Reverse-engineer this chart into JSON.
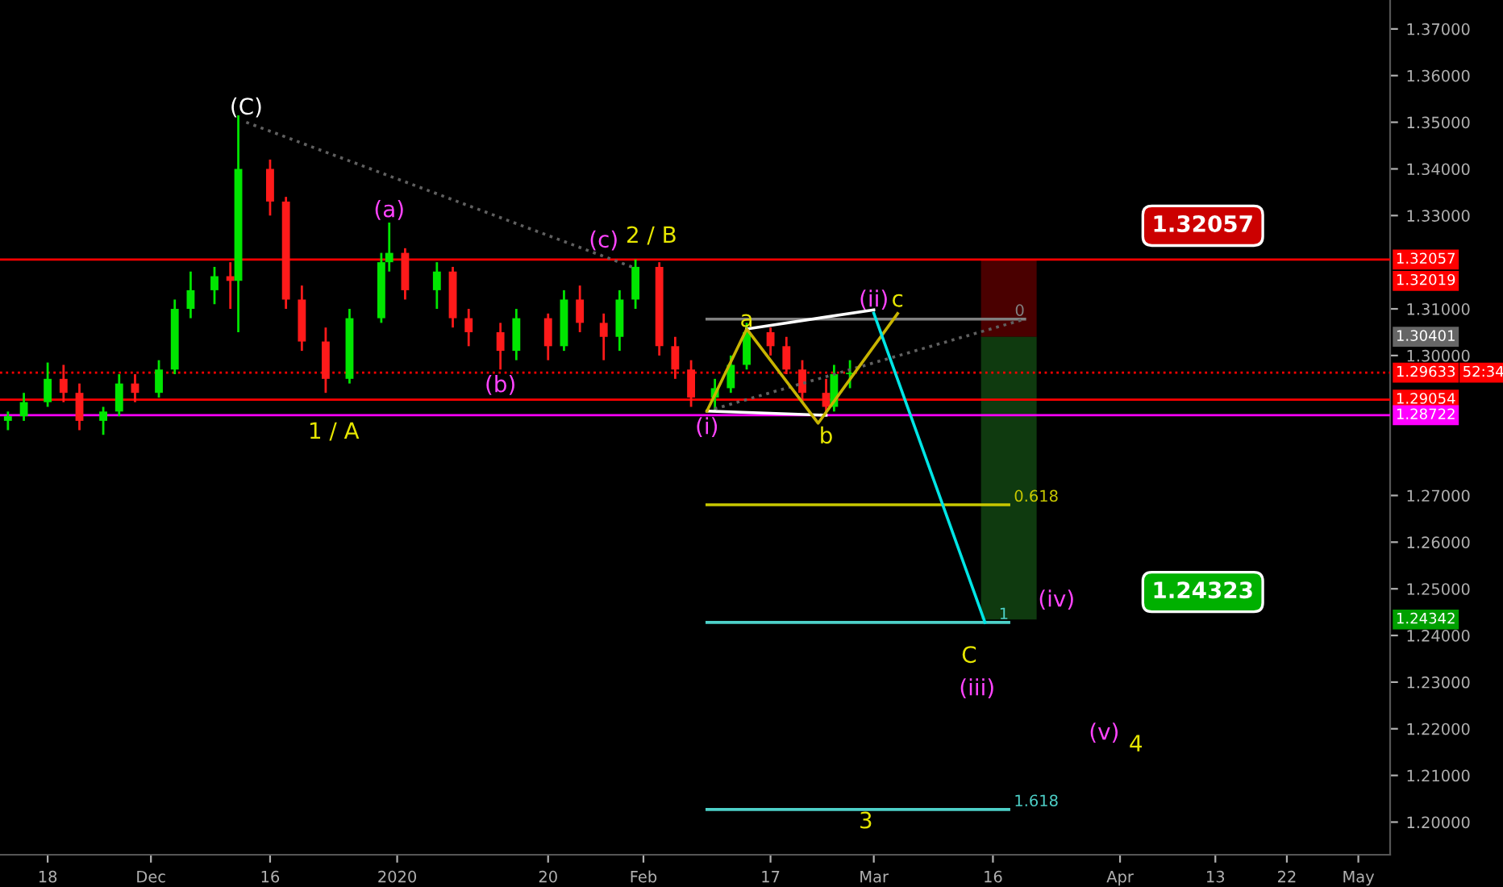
{
  "chart_data": {
    "type": "candlestick",
    "x": [
      "2019-11-13",
      "2019-11-15",
      "2019-11-18",
      "2019-11-20",
      "2019-11-22",
      "2019-11-25",
      "2019-11-27",
      "2019-11-29",
      "2019-12-02",
      "2019-12-04",
      "2019-12-06",
      "2019-12-09",
      "2019-12-11",
      "2019-12-12",
      "2019-12-16",
      "2019-12-18",
      "2019-12-20",
      "2019-12-23",
      "2019-12-26",
      "2019-12-30",
      "2019-12-31",
      "2020-01-02",
      "2020-01-06",
      "2020-01-08",
      "2020-01-10",
      "2020-01-14",
      "2020-01-16",
      "2020-01-20",
      "2020-01-22",
      "2020-01-24",
      "2020-01-27",
      "2020-01-29",
      "2020-01-31",
      "2020-02-03",
      "2020-02-05",
      "2020-02-07",
      "2020-02-10",
      "2020-02-12",
      "2020-02-14",
      "2020-02-17",
      "2020-02-19",
      "2020-02-21",
      "2020-02-24",
      "2020-02-25",
      "2020-02-27"
    ],
    "ohlc": [
      [
        1.286,
        1.288,
        1.284,
        1.287
      ],
      [
        1.287,
        1.292,
        1.286,
        1.29
      ],
      [
        1.29,
        1.2985,
        1.289,
        1.295
      ],
      [
        1.295,
        1.298,
        1.29,
        1.292
      ],
      [
        1.292,
        1.294,
        1.284,
        1.286
      ],
      [
        1.286,
        1.289,
        1.283,
        1.288
      ],
      [
        1.288,
        1.296,
        1.287,
        1.294
      ],
      [
        1.294,
        1.296,
        1.29,
        1.292
      ],
      [
        1.292,
        1.299,
        1.291,
        1.297
      ],
      [
        1.297,
        1.312,
        1.296,
        1.31
      ],
      [
        1.31,
        1.318,
        1.308,
        1.314
      ],
      [
        1.314,
        1.319,
        1.311,
        1.317
      ],
      [
        1.317,
        1.32,
        1.31,
        1.316
      ],
      [
        1.316,
        1.3515,
        1.305,
        1.34
      ],
      [
        1.34,
        1.342,
        1.33,
        1.333
      ],
      [
        1.333,
        1.334,
        1.31,
        1.312
      ],
      [
        1.312,
        1.315,
        1.301,
        1.303
      ],
      [
        1.303,
        1.306,
        1.292,
        1.295
      ],
      [
        1.295,
        1.31,
        1.294,
        1.308
      ],
      [
        1.308,
        1.322,
        1.307,
        1.32
      ],
      [
        1.32,
        1.3285,
        1.318,
        1.322
      ],
      [
        1.322,
        1.323,
        1.312,
        1.314
      ],
      [
        1.314,
        1.32,
        1.31,
        1.318
      ],
      [
        1.318,
        1.319,
        1.306,
        1.308
      ],
      [
        1.308,
        1.31,
        1.302,
        1.305
      ],
      [
        1.305,
        1.307,
        1.297,
        1.301
      ],
      [
        1.301,
        1.31,
        1.299,
        1.308
      ],
      [
        1.308,
        1.309,
        1.299,
        1.302
      ],
      [
        1.302,
        1.314,
        1.301,
        1.312
      ],
      [
        1.312,
        1.315,
        1.305,
        1.307
      ],
      [
        1.307,
        1.309,
        1.299,
        1.304
      ],
      [
        1.304,
        1.314,
        1.301,
        1.312
      ],
      [
        1.312,
        1.3206,
        1.31,
        1.319
      ],
      [
        1.319,
        1.32,
        1.3,
        1.302
      ],
      [
        1.302,
        1.304,
        1.295,
        1.297
      ],
      [
        1.297,
        1.299,
        1.289,
        1.291
      ],
      [
        1.291,
        1.295,
        1.288,
        1.293
      ],
      [
        1.293,
        1.3,
        1.292,
        1.298
      ],
      [
        1.298,
        1.307,
        1.297,
        1.305
      ],
      [
        1.305,
        1.306,
        1.3,
        1.302
      ],
      [
        1.302,
        1.304,
        1.296,
        1.297
      ],
      [
        1.297,
        1.299,
        1.29,
        1.292
      ],
      [
        1.292,
        1.295,
        1.2872,
        1.289
      ],
      [
        1.289,
        1.298,
        1.288,
        1.296
      ],
      [
        1.296,
        1.299,
        1.293,
        1.2963
      ]
    ],
    "colors": [
      "#00e600",
      "#00e600",
      "#00e600",
      "#ff1a1a",
      "#ff1a1a",
      "#00e600",
      "#00e600",
      "#ff1a1a",
      "#00e600",
      "#00e600",
      "#00e600",
      "#00e600",
      "#ff1a1a",
      "#00e600",
      "#ff1a1a",
      "#ff1a1a",
      "#ff1a1a",
      "#ff1a1a",
      "#00e600",
      "#00e600",
      "#00e600",
      "#ff1a1a",
      "#00e600",
      "#ff1a1a",
      "#ff1a1a",
      "#ff1a1a",
      "#00e600",
      "#ff1a1a",
      "#00e600",
      "#ff1a1a",
      "#ff1a1a",
      "#00e600",
      "#00e600",
      "#ff1a1a",
      "#ff1a1a",
      "#ff1a1a",
      "#00e600",
      "#00e600",
      "#00e600",
      "#ff1a1a",
      "#ff1a1a",
      "#ff1a1a",
      "#ff1a1a",
      "#00e600",
      "#00e600"
    ],
    "series": [
      {
        "type": "bar",
        "color": "#4a0000",
        "x": [
          "2020-03-18"
        ],
        "base": [
          1.30401
        ],
        "values": [
          0.0166
        ]
      },
      {
        "type": "bar",
        "color": "#0f3a0f",
        "x": [
          "2020-03-18"
        ],
        "base": [
          1.24342
        ],
        "values": [
          0.0606
        ]
      },
      {
        "type": "line",
        "name": "0",
        "color": "#808080",
        "x": [
          "2020-02-09",
          "2020-03-20"
        ],
        "values": [
          1.3078,
          1.3078
        ]
      },
      {
        "type": "line",
        "name": "0.618",
        "color": "#c8c800",
        "x": [
          "2020-02-09",
          "2020-03-18"
        ],
        "values": [
          1.268,
          1.268
        ]
      },
      {
        "type": "line",
        "name": "1",
        "color": "#4dd0c8",
        "x": [
          "2020-02-09",
          "2020-03-18"
        ],
        "values": [
          1.2428,
          1.2428
        ]
      },
      {
        "type": "line",
        "name": "1.618",
        "color": "#4dd0c8",
        "x": [
          "2020-02-09",
          "2020-03-18"
        ],
        "values": [
          1.2027,
          1.2027
        ]
      },
      {
        "type": "line",
        "color": "#606060",
        "line_style": "dotted",
        "x": [
          "2019-12-13",
          "2020-01-31"
        ],
        "values": [
          1.35,
          1.3187
        ]
      },
      {
        "type": "line",
        "color": "#606060",
        "line_style": "dotted",
        "x": [
          "2020-02-09",
          "2020-03-20"
        ],
        "values": [
          1.2881,
          1.3078
        ]
      },
      {
        "type": "line",
        "color": "#ffffff",
        "x": [
          "2020-02-14",
          "2020-03-01"
        ],
        "values": [
          1.3057,
          1.3098
        ]
      },
      {
        "type": "line",
        "color": "#ffffff",
        "x": [
          "2020-02-09",
          "2020-02-24"
        ],
        "values": [
          1.2881,
          1.2872
        ]
      },
      {
        "type": "line",
        "color": "#c8b400",
        "x": [
          "2020-02-09",
          "2020-02-14",
          "2020-02-23",
          "2020-03-04"
        ],
        "values": [
          1.2881,
          1.3057,
          1.2855,
          1.309
        ]
      },
      {
        "type": "line",
        "color": "#00e5e5",
        "x": [
          "2020-03-01",
          "2020-03-15"
        ],
        "values": [
          1.3091,
          1.2428
        ]
      }
    ],
    "ref_lines": [
      {
        "axis": "y",
        "value": 1.32057,
        "label": "1.32057",
        "color": "#ff0000",
        "line_style": "solid"
      },
      {
        "axis": "y",
        "value": 1.29633,
        "label": "1.29633",
        "color": "#ff0000",
        "line_style": "dotted"
      },
      {
        "axis": "y",
        "value": 1.29054,
        "label": "1.29054",
        "color": "#ff0000",
        "line_style": "solid"
      },
      {
        "axis": "y",
        "value": 1.28722,
        "label": "1.28722",
        "color": "#ff00ff",
        "line_style": "solid"
      }
    ],
    "annotations": [
      "(C)",
      "(a)",
      "(b)",
      "(c)",
      "2 / B",
      "1 / A",
      "(i)",
      "a",
      "b",
      "(ii)",
      "c",
      "(iv)",
      "C",
      "(iii)",
      "(v)",
      "4",
      "3",
      "1.32057",
      "1.24323",
      "52:34",
      "1.32019",
      "1.30401",
      "1.24342"
    ],
    "xlim": [
      "2019-11-12",
      "2020-05-05"
    ],
    "xticks": [
      {
        "value": "2019-11-18",
        "label": "18"
      },
      {
        "value": "2019-12-01",
        "label": "Dec"
      },
      {
        "value": "2019-12-16",
        "label": "16"
      },
      {
        "value": "2020-01-01",
        "label": "2020"
      },
      {
        "value": "2020-01-20",
        "label": "20"
      },
      {
        "value": "2020-02-01",
        "label": "Feb"
      },
      {
        "value": "2020-02-17",
        "label": "17"
      },
      {
        "value": "2020-03-01",
        "label": "Mar"
      },
      {
        "value": "2020-03-16",
        "label": "16"
      },
      {
        "value": "2020-04-01",
        "label": "Apr"
      },
      {
        "value": "2020-04-13",
        "label": "13"
      },
      {
        "value": "2020-04-22",
        "label": "22"
      },
      {
        "value": "2020-05-01",
        "label": "May"
      }
    ],
    "ylim": [
      1.193,
      1.3762
    ],
    "yticks": [
      {
        "value": 1.2,
        "label": "1.20000"
      },
      {
        "value": 1.21,
        "label": "1.21000"
      },
      {
        "value": 1.22,
        "label": "1.22000"
      },
      {
        "value": 1.23,
        "label": "1.23000"
      },
      {
        "value": 1.24,
        "label": "1.24000"
      },
      {
        "value": 1.25,
        "label": "1.25000"
      },
      {
        "value": 1.26,
        "label": "1.26000"
      },
      {
        "value": 1.27,
        "label": "1.27000"
      },
      {
        "value": 1.3,
        "label": "1.30000"
      },
      {
        "value": 1.31,
        "label": "1.31000"
      },
      {
        "value": 1.33,
        "label": "1.33000"
      },
      {
        "value": 1.34,
        "label": "1.34000"
      },
      {
        "value": 1.35,
        "label": "1.35000"
      },
      {
        "value": 1.36,
        "label": "1.36000"
      },
      {
        "value": 1.37,
        "label": "1.37000"
      }
    ],
    "grid": false,
    "legend": false
  }
}
